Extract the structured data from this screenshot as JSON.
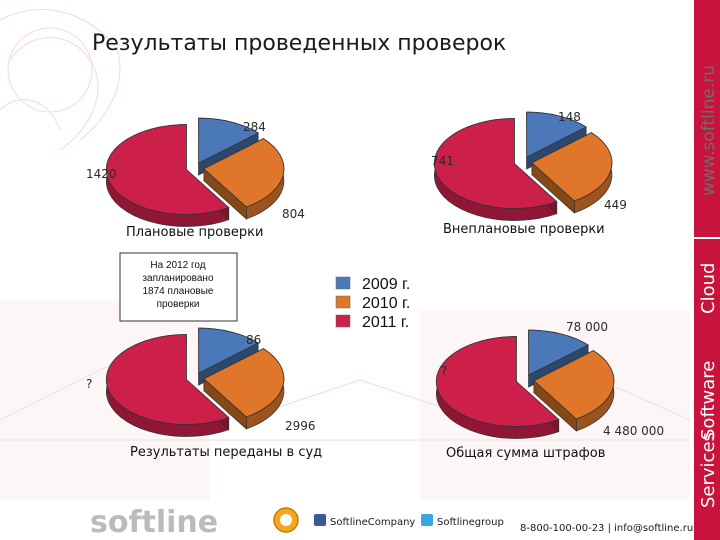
{
  "title": "Результаты проведенных проверок",
  "colors": {
    "2009": "#4a78b8",
    "2010": "#e0762a",
    "2011": "#cc1f4a",
    "brand": "#c8143c"
  },
  "chart_data": [
    {
      "type": "pie",
      "caption": "Плановые проверки",
      "slices": [
        {
          "series": "2009 г.",
          "label": "284",
          "value": 284
        },
        {
          "series": "2010 г.",
          "label": "804",
          "value": 804
        },
        {
          "series": "2011 г.",
          "label": "1420",
          "value": 1420
        }
      ]
    },
    {
      "type": "pie",
      "caption": "Внеплановые проверки",
      "slices": [
        {
          "series": "2009 г.",
          "label": "148",
          "value": 148
        },
        {
          "series": "2010 г.",
          "label": "449",
          "value": 449
        },
        {
          "series": "2011 г.",
          "label": "741",
          "value": 741
        }
      ]
    },
    {
      "type": "pie",
      "caption": "Результаты переданы в суд",
      "slices": [
        {
          "series": "2009 г.",
          "label": "86",
          "value": 86
        },
        {
          "series": "2010 г.",
          "label": "2996",
          "value": 2996
        },
        {
          "series": "2011 г.",
          "label": "?",
          "value": null
        }
      ]
    },
    {
      "type": "pie",
      "caption": "Общая сумма штрафов",
      "slices": [
        {
          "series": "2009 г.",
          "label": "78 000",
          "value": 78000
        },
        {
          "series": "2010 г.",
          "label": "4 480 000",
          "value": 4480000
        },
        {
          "series": "2011 г.",
          "label": "?",
          "value": null
        }
      ]
    }
  ],
  "legend": [
    {
      "label": "2009 г.",
      "color_key": "2009"
    },
    {
      "label": "2010 г.",
      "color_key": "2010"
    },
    {
      "label": "2011 г.",
      "color_key": "2011"
    }
  ],
  "note": [
    "На 2012 год",
    "запланировано",
    "1874 плановые",
    "проверки"
  ],
  "sidebar": {
    "url": "www.softline.ru",
    "services": "Services",
    "software": "Software",
    "cloud": "Cloud"
  },
  "footer": {
    "logo": "softline",
    "facebook": "SoftlineCompany",
    "twitter": "Softlinegroup",
    "contact": "8-800-100-00-23 | info@softline.ru"
  }
}
